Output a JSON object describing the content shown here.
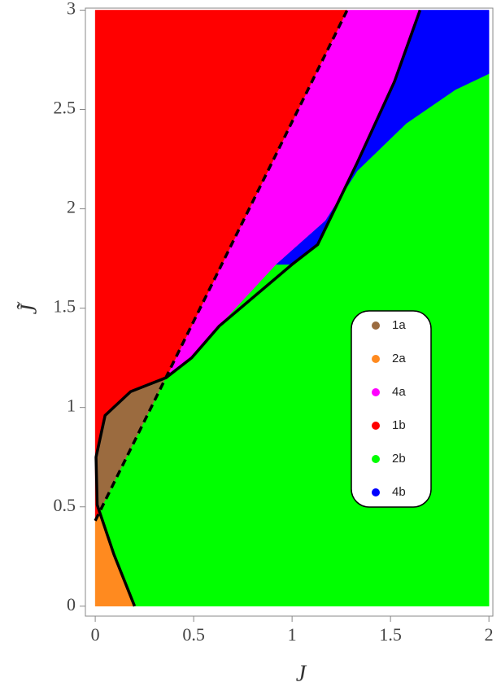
{
  "chart_data": {
    "type": "phase",
    "x_label": "J",
    "y_label": "J̃",
    "xlim": [
      -0.05,
      2.02
    ],
    "ylim": [
      -0.05,
      3.01
    ],
    "xticks": [
      0,
      0.5,
      1,
      1.5,
      2
    ],
    "yticks": [
      0,
      0.5,
      1,
      1.5,
      2,
      2.5,
      3
    ],
    "regions": [
      {
        "name": "1a",
        "color": "#9b6b3f",
        "x": [
          0.36,
          0.18,
          0.05,
          0.004,
          0.01,
          0.02
        ],
        "y": [
          1.15,
          1.08,
          0.96,
          0.75,
          0.51,
          0.47
        ]
      },
      {
        "name": "2a",
        "color": "#ff8a1f",
        "x": [
          0,
          0.2,
          0.095,
          0.02,
          0
        ],
        "y": [
          0,
          0,
          0.26,
          0.47,
          0.43
        ]
      },
      {
        "name": "4a",
        "color": "#ff00ff",
        "x": [
          0.36,
          1.28,
          1.65,
          1.52,
          1.33,
          1.13,
          1.0,
          0.63,
          0.49
        ],
        "y": [
          1.15,
          3,
          3,
          2.64,
          2.23,
          1.82,
          1.72,
          1.41,
          1.25
        ]
      },
      {
        "name": "1b",
        "color": "#ff0000",
        "x": [
          0,
          0,
          1.28,
          0.36,
          0.18,
          0.05,
          0.004,
          0.01,
          0.02
        ],
        "y": [
          0.43,
          3,
          3,
          1.15,
          1.08,
          0.96,
          0.75,
          0.51,
          0.47
        ]
      },
      {
        "name": "2b",
        "color": "#00ff00",
        "x": [
          0.2,
          2,
          2,
          1.83,
          1.58,
          1.33,
          1.17,
          0.92,
          0.63,
          0.49,
          0.36,
          0.02,
          0.095
        ],
        "y": [
          0,
          0,
          2.68,
          2.6,
          2.43,
          2.19,
          1.94,
          1.72,
          1.41,
          1.25,
          1.15,
          0.47,
          0.26
        ]
      },
      {
        "name": "4b",
        "color": "#0000ff",
        "x": [
          1.65,
          2,
          2,
          1.83,
          1.58,
          1.33,
          1.17,
          0.92,
          1.0,
          1.13,
          1.33,
          1.52
        ],
        "y": [
          3,
          3,
          2.68,
          2.6,
          2.43,
          2.19,
          1.94,
          1.72,
          1.72,
          1.82,
          2.23,
          2.64
        ]
      }
    ],
    "lines": [
      {
        "style": "solid",
        "color": "#000000",
        "x": [
          0.2,
          0.095,
          0.01,
          0.004,
          0.05,
          0.18,
          0.36,
          0.49,
          0.63,
          1.0,
          1.13,
          1.33,
          1.52,
          1.65
        ],
        "y": [
          0,
          0.26,
          0.51,
          0.75,
          0.96,
          1.08,
          1.15,
          1.25,
          1.41,
          1.72,
          1.82,
          2.23,
          2.64,
          3
        ]
      },
      {
        "style": "dashed",
        "color": "#000000",
        "x": [
          0,
          1.28
        ],
        "y": [
          0.43,
          3
        ]
      }
    ]
  }
}
